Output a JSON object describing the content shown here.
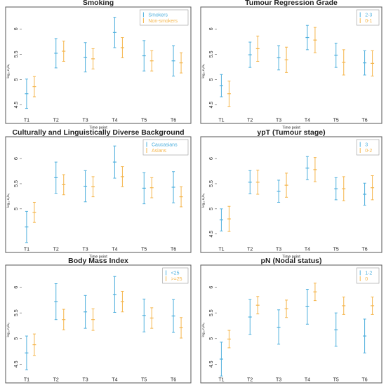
{
  "colors": {
    "series_a": "#4fb0de",
    "series_b": "#f5b54a",
    "axis": "#555555",
    "text": "#222222"
  },
  "chart_data": [
    {
      "type": "errorbar",
      "title": "Smoking",
      "xlabel": "Time point",
      "ylabel": "log₁₀ n₁/n₀",
      "categories": [
        "T1",
        "T2",
        "T3",
        "T4",
        "T5",
        "T6"
      ],
      "yticks": [
        4.5,
        5.0,
        5.5,
        6.0
      ],
      "ylim": [
        4.3,
        6.35
      ],
      "grid": false,
      "legend": "top-right",
      "series": [
        {
          "name": "Smokers",
          "color": "#4fb0de",
          "mean": [
            4.72,
            5.52,
            5.44,
            5.93,
            5.47,
            5.37
          ],
          "lower": [
            4.43,
            5.23,
            5.15,
            5.63,
            5.17,
            5.07
          ],
          "upper": [
            5.01,
            5.81,
            5.73,
            6.23,
            5.77,
            5.67
          ]
        },
        {
          "name": "Non-smokers",
          "color": "#f5b54a",
          "mean": [
            4.86,
            5.56,
            5.41,
            5.63,
            5.37,
            5.33
          ],
          "lower": [
            4.66,
            5.36,
            5.21,
            5.43,
            5.17,
            5.13
          ],
          "upper": [
            5.06,
            5.76,
            5.61,
            5.83,
            5.57,
            5.53
          ]
        }
      ]
    },
    {
      "type": "errorbar",
      "title": "Tumour Regression Grade",
      "xlabel": "Time point",
      "ylabel": "log₁₀ n₁/n₀",
      "categories": [
        "T1",
        "T2",
        "T3",
        "T4",
        "T5",
        "T6"
      ],
      "yticks": [
        4.5,
        5.0,
        5.5,
        6.0
      ],
      "ylim": [
        4.3,
        6.35
      ],
      "grid": false,
      "legend": "top-right",
      "series": [
        {
          "name": "2-3",
          "color": "#4fb0de",
          "mean": [
            4.88,
            5.49,
            5.43,
            5.83,
            5.48,
            5.33
          ],
          "lower": [
            4.66,
            5.24,
            5.19,
            5.59,
            5.24,
            5.09
          ],
          "upper": [
            5.1,
            5.74,
            5.67,
            6.07,
            5.72,
            5.57
          ]
        },
        {
          "name": "0-1",
          "color": "#f5b54a",
          "mean": [
            4.72,
            5.61,
            5.39,
            5.78,
            5.34,
            5.32
          ],
          "lower": [
            4.47,
            5.36,
            5.14,
            5.53,
            5.09,
            5.07
          ],
          "upper": [
            4.97,
            5.86,
            5.64,
            6.03,
            5.59,
            5.57
          ]
        }
      ]
    },
    {
      "type": "errorbar",
      "title": "Culturally and Linguistically Diverse Background",
      "xlabel": "Time point",
      "ylabel": "log₁₀ n₁/n₀",
      "categories": [
        "T1",
        "T2",
        "T3",
        "T4",
        "T5",
        "T6"
      ],
      "yticks": [
        5.0,
        5.5,
        6.0
      ],
      "ylim": [
        4.3,
        6.35
      ],
      "grid": false,
      "legend": "top-right",
      "series": [
        {
          "name": "Caucasians",
          "color": "#4fb0de",
          "mean": [
            4.64,
            5.62,
            5.45,
            5.93,
            5.41,
            5.43
          ],
          "lower": [
            4.33,
            5.31,
            5.14,
            5.61,
            5.1,
            5.12
          ],
          "upper": [
            4.95,
            5.93,
            5.76,
            6.25,
            5.72,
            5.74
          ]
        },
        {
          "name": "Asians",
          "color": "#f5b54a",
          "mean": [
            4.93,
            5.48,
            5.44,
            5.64,
            5.42,
            5.24
          ],
          "lower": [
            4.73,
            5.28,
            5.24,
            5.44,
            5.22,
            5.04
          ],
          "upper": [
            5.13,
            5.68,
            5.64,
            5.84,
            5.62,
            5.44
          ]
        }
      ]
    },
    {
      "type": "errorbar",
      "title": "ypT (Tumour stage)",
      "xlabel": "Time point",
      "ylabel": "log₁₀ n₁/n₀",
      "categories": [
        "T1",
        "T2",
        "T3",
        "T4",
        "T5",
        "T6"
      ],
      "yticks": [
        4.5,
        5.0,
        5.5,
        6.0
      ],
      "ylim": [
        4.3,
        6.35
      ],
      "grid": false,
      "legend": "top-right",
      "series": [
        {
          "name": "3",
          "color": "#4fb0de",
          "mean": [
            4.78,
            5.53,
            5.35,
            5.81,
            5.4,
            5.29
          ],
          "lower": [
            4.56,
            5.3,
            5.13,
            5.58,
            5.18,
            5.07
          ],
          "upper": [
            5.0,
            5.76,
            5.57,
            6.04,
            5.62,
            5.51
          ]
        },
        {
          "name": "0-2",
          "color": "#f5b54a",
          "mean": [
            4.8,
            5.53,
            5.47,
            5.78,
            5.4,
            5.42
          ],
          "lower": [
            4.55,
            5.29,
            5.23,
            5.54,
            5.16,
            5.18
          ],
          "upper": [
            5.05,
            5.77,
            5.71,
            6.02,
            5.64,
            5.66
          ]
        }
      ]
    },
    {
      "type": "errorbar",
      "title": "Body Mass Index",
      "xlabel": "Time point",
      "ylabel": "log₁₀ n₁/n₀",
      "categories": [
        "T1",
        "T2",
        "T3",
        "T4",
        "T5",
        "T6"
      ],
      "yticks": [
        4.5,
        5.0,
        5.5,
        6.0
      ],
      "ylim": [
        4.3,
        6.35
      ],
      "grid": false,
      "legend": "top-right",
      "series": [
        {
          "name": "<25",
          "color": "#4fb0de",
          "mean": [
            4.72,
            5.72,
            5.52,
            5.86,
            5.45,
            5.44
          ],
          "lower": [
            4.39,
            5.37,
            5.2,
            5.51,
            5.13,
            5.12
          ],
          "upper": [
            5.05,
            6.07,
            5.84,
            6.21,
            5.77,
            5.76
          ]
        },
        {
          "name": ">=25",
          "color": "#f5b54a",
          "mean": [
            4.88,
            5.37,
            5.37,
            5.72,
            5.4,
            5.21
          ],
          "lower": [
            4.67,
            5.17,
            5.16,
            5.52,
            5.2,
            5.01
          ],
          "upper": [
            5.09,
            5.57,
            5.58,
            5.92,
            5.6,
            5.41
          ]
        }
      ]
    },
    {
      "type": "errorbar",
      "title": "pN (Nodal status)",
      "xlabel": "Time point",
      "ylabel": "log₁₀ n₁/n₀",
      "categories": [
        "T1",
        "T2",
        "T3",
        "T4",
        "T5",
        "T6"
      ],
      "yticks": [
        4.5,
        5.0,
        5.5,
        6.0
      ],
      "ylim": [
        4.3,
        6.35
      ],
      "grid": false,
      "legend": "top-right",
      "series": [
        {
          "name": "1-2",
          "color": "#4fb0de",
          "mean": [
            4.6,
            5.42,
            5.22,
            5.62,
            5.17,
            5.05
          ],
          "lower": [
            4.27,
            5.08,
            4.89,
            5.28,
            4.85,
            4.72
          ],
          "upper": [
            4.93,
            5.76,
            5.56,
            5.96,
            5.5,
            5.38
          ]
        },
        {
          "name": "0",
          "color": "#f5b54a",
          "mean": [
            4.99,
            5.65,
            5.58,
            5.91,
            5.64,
            5.64
          ],
          "lower": [
            4.82,
            5.48,
            5.41,
            5.74,
            5.47,
            5.47
          ],
          "upper": [
            5.16,
            5.82,
            5.75,
            6.08,
            5.81,
            5.81
          ]
        }
      ]
    }
  ]
}
